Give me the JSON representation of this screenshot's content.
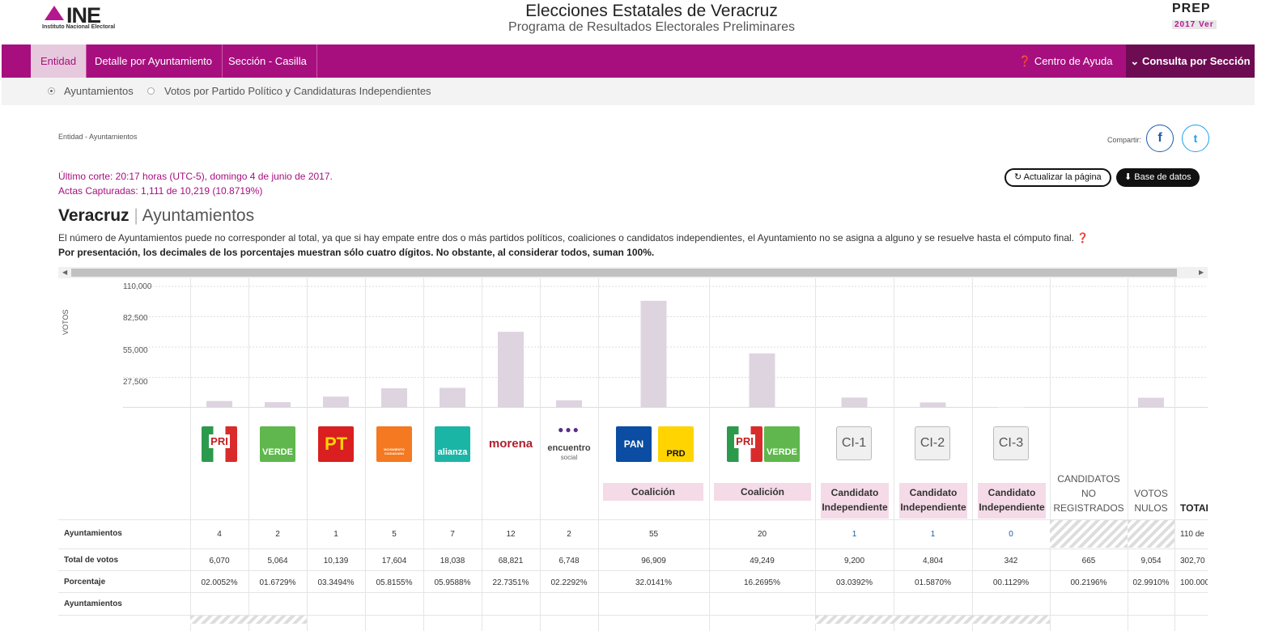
{
  "header": {
    "ine_logo_text": "INE",
    "ine_logo_sub": "Instituto Nacional Electoral",
    "title": "Elecciones Estatales de Veracruz",
    "subtitle": "Programa de Resultados Electorales Preliminares",
    "prep_logo_top": "PREP",
    "prep_logo_bottom": "2017 Ver"
  },
  "nav": {
    "items": [
      {
        "label": "Entidad",
        "active": true
      },
      {
        "label": "Detalle por Ayuntamiento",
        "active": false
      },
      {
        "label": "Sección - Casilla",
        "active": false
      }
    ],
    "help": "Centro de Ayuda",
    "consulta": "Consulta por Sección"
  },
  "subnav": {
    "options": [
      {
        "label": "Ayuntamientos",
        "selected": true
      },
      {
        "label": "Votos por Partido Político y Candidaturas Independientes",
        "selected": false
      }
    ]
  },
  "breadcrumb": "Entidad - Ayuntamientos",
  "share": {
    "label": "Compartir:",
    "facebook": "f",
    "twitter": "t"
  },
  "corte": {
    "line1": "Último corte: 20:17 horas (UTC-5), domingo 4 de junio de 2017.",
    "line2": "Actas Capturadas: 1,111 de 10,219 (10.8719%)"
  },
  "buttons": {
    "update": "Actualizar la página",
    "database": "Base de datos"
  },
  "heading": {
    "bold": "Veracruz",
    "sep": "|",
    "rest": "Ayuntamientos"
  },
  "notes": {
    "note1": "El número de Ayuntamientos puede no corresponder al total, ya que si hay empate entre dos o más partidos políticos, coaliciones o candidatos independientes, el Ayuntamiento no se asigna a alguno y se resuelve hasta el cómputo final.",
    "note2": "Por presentación, los decimales de los porcentajes muestran sólo cuatro dígitos. No obstante, al considerar todos, suman 100%."
  },
  "chart_data": {
    "type": "bar",
    "ylabel": "VOTOS",
    "ylim": [
      0,
      110000
    ],
    "yticks": [
      "110,000",
      "82,500",
      "55,000",
      "27,500"
    ],
    "categories": [
      "PRI",
      "VERDE",
      "PT",
      "MC",
      "NUEVA ALIANZA",
      "morena",
      "encuentro social",
      "PAN-PRD",
      "PRI-VERDE",
      "CI-1",
      "CI-2",
      "CI-3",
      "CANDIDATOS NO REGISTRADOS",
      "VOTOS NULOS"
    ],
    "values": [
      6070,
      5064,
      10139,
      17604,
      18038,
      68821,
      6748,
      96909,
      49249,
      9200,
      4804,
      342,
      665,
      9054
    ]
  },
  "table": {
    "headers": {
      "coalicion": "Coalición",
      "candidato_independiente": "Candidato Independiente",
      "ci1": "CI-1",
      "ci2": "CI-2",
      "ci3": "CI-3",
      "no_registrados": "CANDIDATOS NO REGISTRADOS",
      "nulos": "VOTOS NULOS",
      "total": "TOTAL"
    },
    "logos": {
      "pri": "PRI",
      "verde": "VERDE",
      "pt": "PT",
      "mc": "MOVIMIENTO CIUDADANO",
      "alianza": "alianza",
      "morena": "morena",
      "encuentro": "encuentro",
      "encuentro_sub": "social",
      "pan": "PAN",
      "prd": "PRD"
    },
    "row_labels": {
      "ayuntamientos": "Ayuntamientos",
      "votos": "Total de votos",
      "porcentaje": "Porcentaje",
      "ayuntamientos2": "Ayuntamientos"
    },
    "ayuntamientos": [
      "4",
      "2",
      "1",
      "5",
      "7",
      "12",
      "2",
      "55",
      "20",
      "1",
      "1",
      "0",
      "",
      "",
      "110 de"
    ],
    "votos": [
      "6,070",
      "5,064",
      "10,139",
      "17,604",
      "18,038",
      "68,821",
      "6,748",
      "96,909",
      "49,249",
      "9,200",
      "4,804",
      "342",
      "665",
      "9,054",
      "302,70"
    ],
    "porcentaje": [
      "02.0052%",
      "01.6729%",
      "03.3494%",
      "05.8155%",
      "05.9588%",
      "22.7351%",
      "02.2292%",
      "32.0141%",
      "16.2695%",
      "03.0392%",
      "01.5870%",
      "00.1129%",
      "00.2196%",
      "02.9910%",
      "100.000"
    ]
  },
  "colors": {
    "brand": "#a70f7e",
    "nav_dark": "#6e0c53",
    "bar": "#ddd4e0"
  }
}
